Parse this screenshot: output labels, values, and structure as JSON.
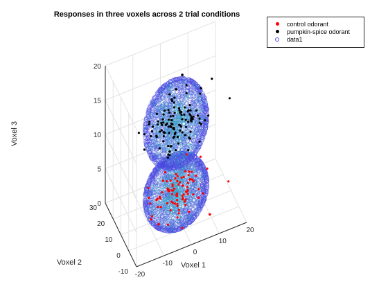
{
  "chart_data": {
    "type": "scatter",
    "title": "Responses in three voxels across 2 trial conditions",
    "xlabel": "Voxel 1",
    "ylabel": "Voxel 2",
    "zlabel": "Voxel 3",
    "xlim": [
      -20,
      20
    ],
    "ylim": [
      -10,
      30
    ],
    "zlim": [
      0,
      20
    ],
    "xticks": [
      "-20",
      "-10",
      "0",
      "10",
      "20"
    ],
    "yticks": [
      "-10",
      "0",
      "10",
      "20",
      "30"
    ],
    "zticks": [
      "0",
      "5",
      "10",
      "15",
      "20"
    ],
    "grid": true,
    "legend_position": "top-right",
    "series": [
      {
        "name": "control odorant",
        "marker": "filled-dot",
        "color": "#ff0000",
        "center": [
          0,
          10,
          3
        ],
        "spread": [
          12,
          8,
          4
        ],
        "count": 80,
        "visible_points": [
          [
            -3,
            10,
            4
          ],
          [
            3,
            12,
            3
          ],
          [
            -8,
            4,
            1
          ],
          [
            7,
            6,
            2
          ],
          [
            10,
            2,
            0
          ]
        ]
      },
      {
        "name": "pumpkin-spice odorant",
        "marker": "filled-dot",
        "color": "#000000",
        "center": [
          0,
          10,
          13
        ],
        "spread": [
          12,
          8,
          4
        ],
        "count": 110,
        "visible_points": [
          [
            0,
            10,
            18
          ],
          [
            -5,
            8,
            13
          ],
          [
            6,
            12,
            12
          ],
          [
            2,
            9,
            20
          ],
          [
            -2,
            11,
            9
          ]
        ]
      },
      {
        "name": "data1",
        "marker": "open-circle",
        "color": "#4a4ae0",
        "fill_center_color": "#3aa0c8",
        "note": "ellipsoid surfaces enclosing each condition cloud",
        "ellipsoids": [
          {
            "center": [
              0,
              10,
              3
            ],
            "radii": [
              11,
              9,
              5
            ]
          },
          {
            "center": [
              0,
              10,
              13
            ],
            "radii": [
              11,
              9,
              6
            ]
          }
        ]
      }
    ]
  },
  "legend": {
    "entries": [
      {
        "label": "control odorant",
        "color": "#ff0000",
        "marker": "dot"
      },
      {
        "label": "pumpkin-spice odorant",
        "color": "#000000",
        "marker": "dot"
      },
      {
        "label": "data1",
        "color": "#4a4ae0",
        "marker": "ring"
      }
    ]
  }
}
